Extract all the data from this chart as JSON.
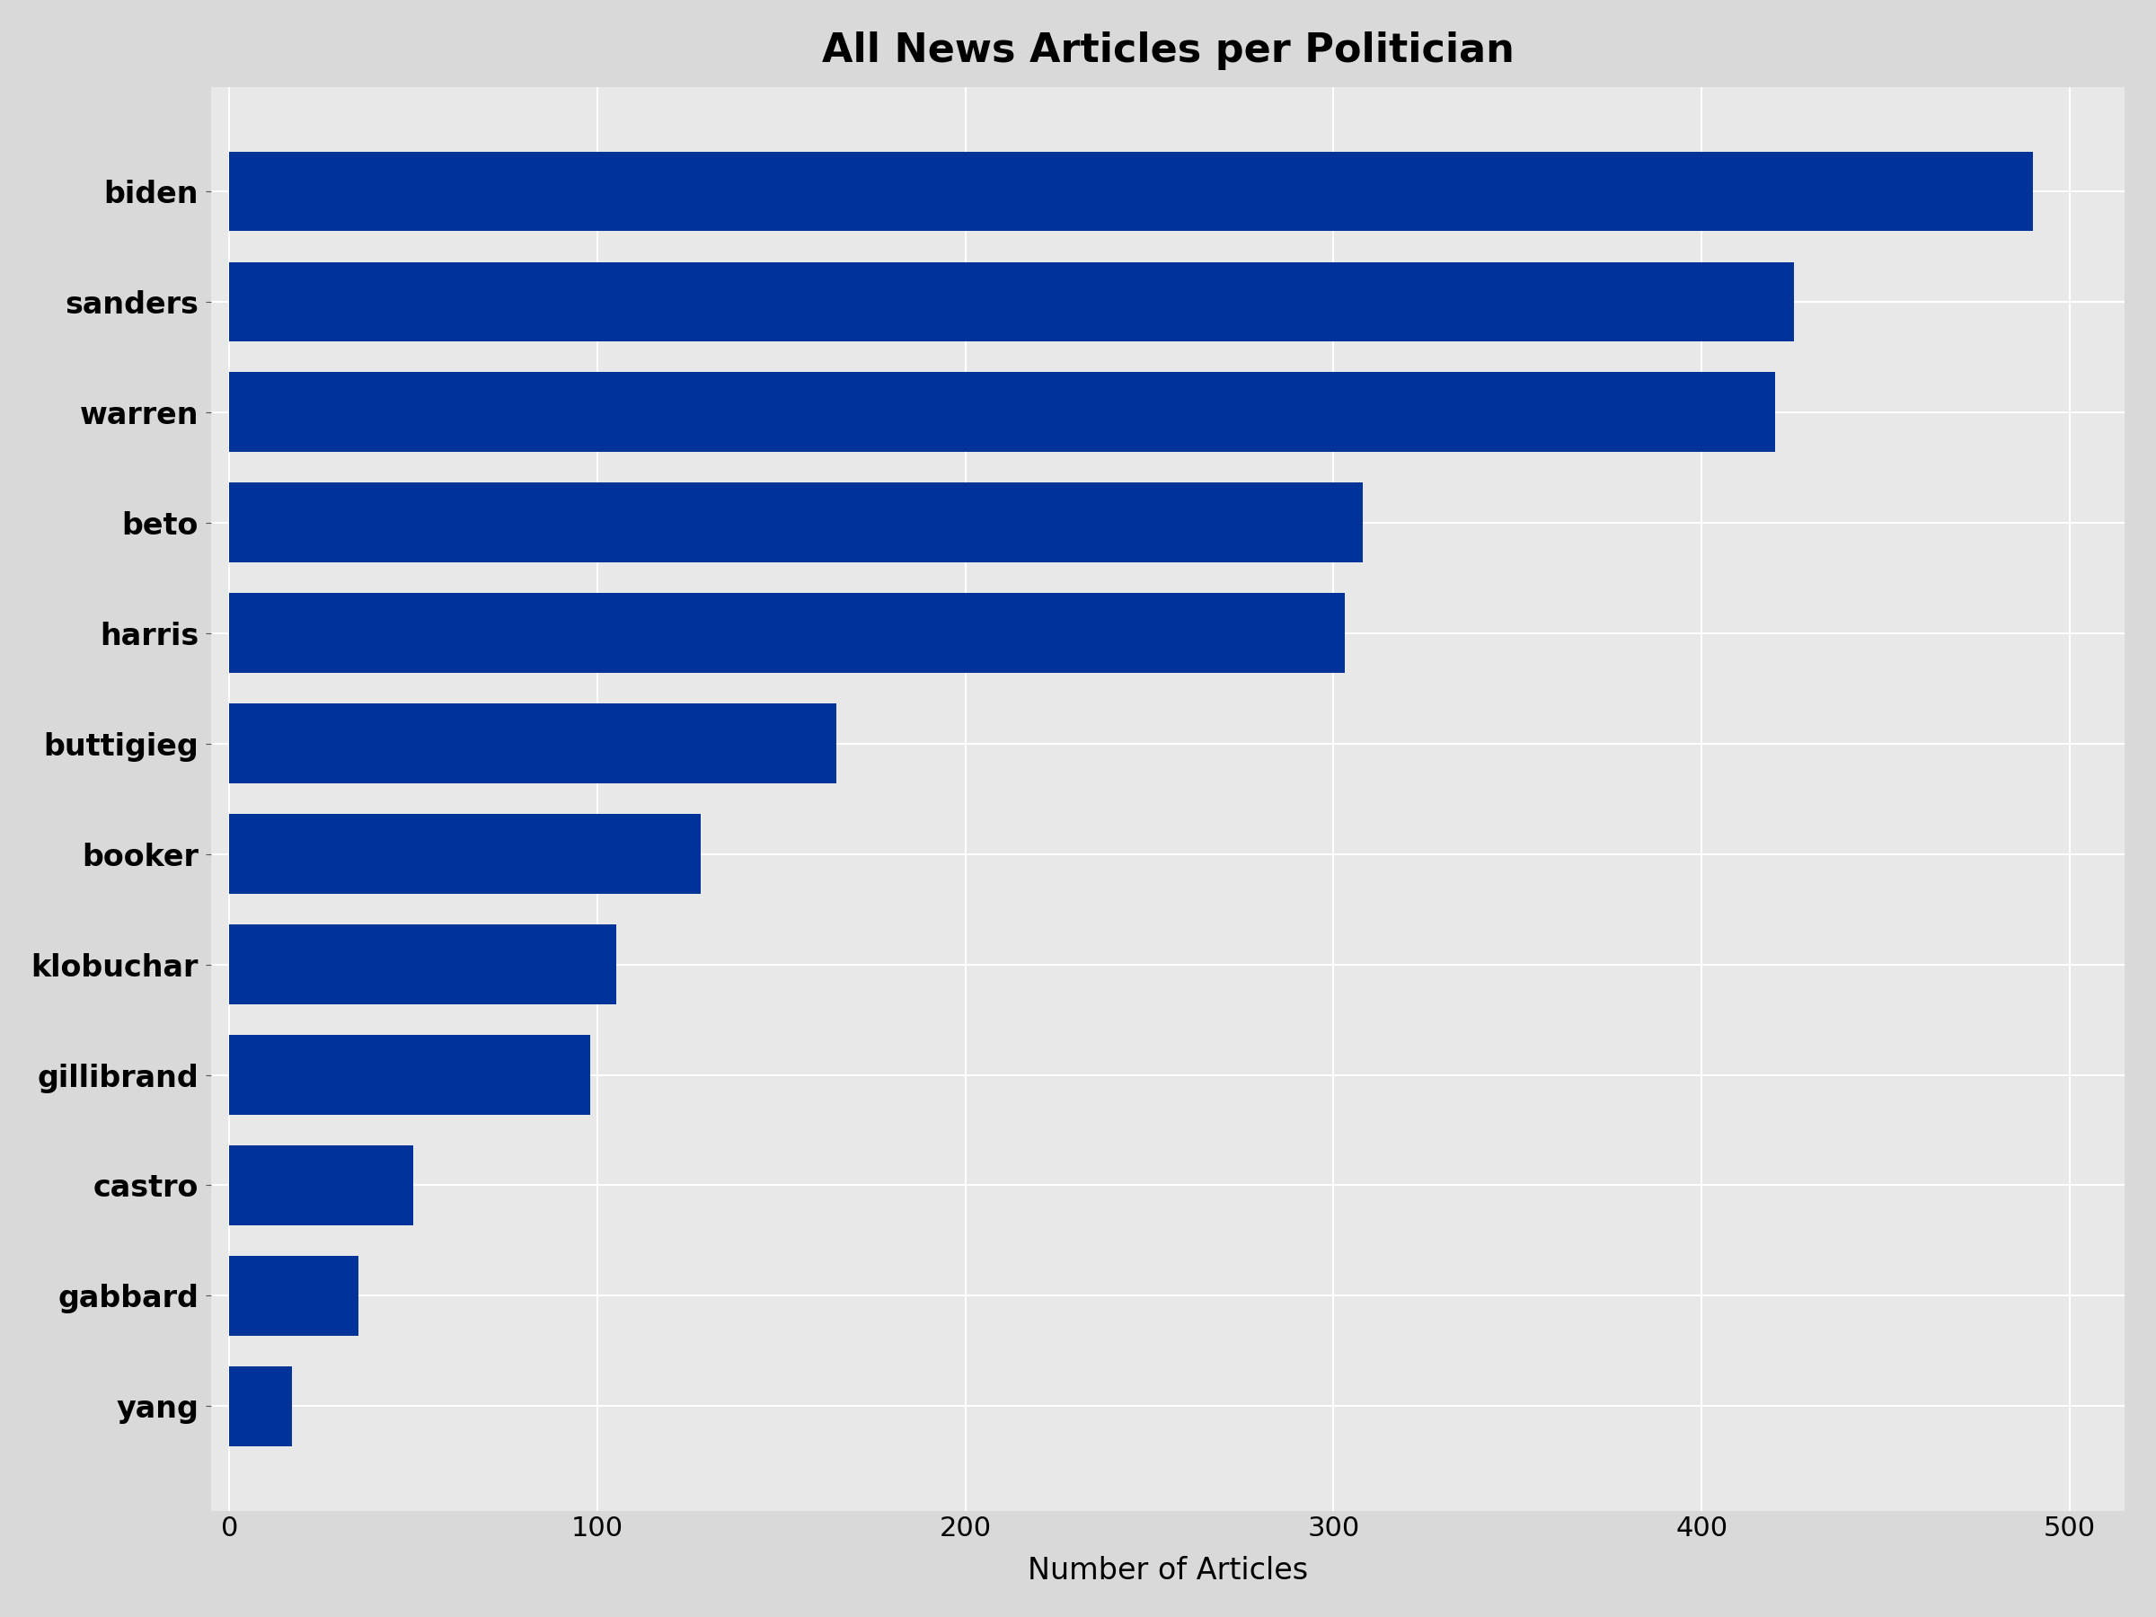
{
  "politicians": [
    "biden",
    "sanders",
    "warren",
    "beto",
    "harris",
    "buttigieg",
    "booker",
    "klobuchar",
    "gillibrand",
    "castro",
    "gabbard",
    "yang"
  ],
  "values": [
    490,
    425,
    420,
    308,
    303,
    165,
    128,
    105,
    98,
    50,
    35,
    17
  ],
  "bar_color": "#003399",
  "title": "All News Articles per Politician",
  "xlabel": "Number of Articles",
  "xlim": [
    -5,
    515
  ],
  "xticks": [
    0,
    100,
    200,
    300,
    400,
    500
  ],
  "outer_background": "#d9d9d9",
  "plot_background": "#e8e8e8",
  "grid_color": "#ffffff",
  "title_fontsize": 32,
  "label_fontsize": 24,
  "tick_fontsize": 22,
  "bar_height": 0.72
}
